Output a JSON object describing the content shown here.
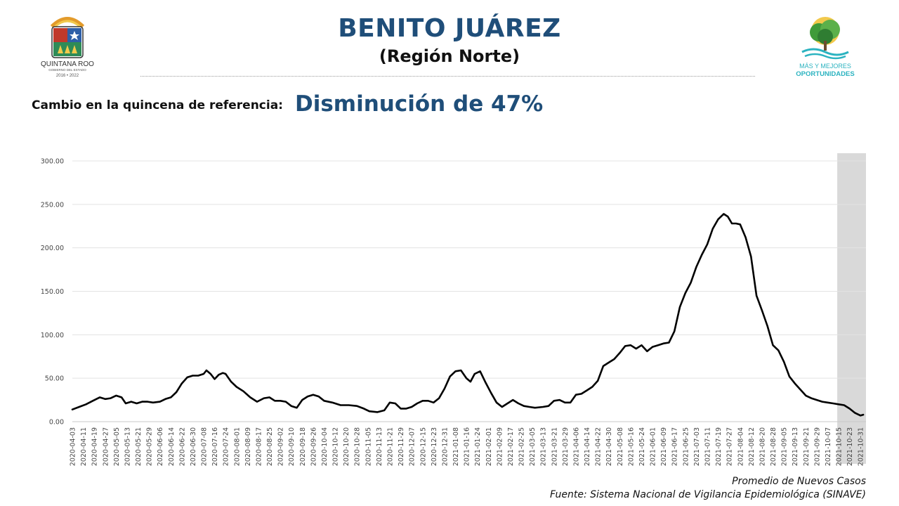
{
  "header": {
    "title": "BENITO JUÁREZ",
    "subtitle": "(Región Norte)",
    "change_label": "Cambio en la quincena de referencia:",
    "change_value": "Disminución de 47%"
  },
  "logos": {
    "left": {
      "line1": "QUINTANA ROO",
      "line2": "GOBIERNO DEL ESTADO",
      "line3": "2016 • 2022"
    },
    "right": {
      "line1": "MÁS Y MEJORES",
      "line2": "OPORTUNIDADES"
    }
  },
  "footer": {
    "series_note": "Promedio de Nuevos Casos",
    "source": "Fuente: Sistema Nacional de Vigilancia Epidemiológica (SINAVE)"
  },
  "colors": {
    "title": "#1f4e79",
    "line": "#000000",
    "shade": "#d9d9d9",
    "grid": "#e3e3e3"
  },
  "chart_data": {
    "type": "line",
    "ylim": [
      0,
      300
    ],
    "yticks": [
      "0.00",
      "50.00",
      "100.00",
      "150.00",
      "200.00",
      "250.00",
      "300.00"
    ],
    "xticks": [
      "2020-04-03",
      "2020-04-11",
      "2020-04-19",
      "2020-04-27",
      "2020-05-05",
      "2020-05-13",
      "2020-05-21",
      "2020-05-29",
      "2020-06-06",
      "2020-06-14",
      "2020-06-22",
      "2020-06-30",
      "2020-07-08",
      "2020-07-16",
      "2020-07-24",
      "2020-08-01",
      "2020-08-09",
      "2020-08-17",
      "2020-08-25",
      "2020-09-02",
      "2020-09-10",
      "2020-09-18",
      "2020-09-26",
      "2020-10-04",
      "2020-10-12",
      "2020-10-20",
      "2020-10-28",
      "2020-11-05",
      "2020-11-13",
      "2020-11-21",
      "2020-11-29",
      "2020-12-07",
      "2020-12-15",
      "2020-12-23",
      "2020-12-31",
      "2021-01-08",
      "2021-01-16",
      "2021-01-24",
      "2021-02-01",
      "2021-02-09",
      "2021-02-17",
      "2021-02-25",
      "2021-03-05",
      "2021-03-13",
      "2021-03-21",
      "2021-03-29",
      "2021-04-06",
      "2021-04-14",
      "2021-04-22",
      "2021-04-30",
      "2021-05-08",
      "2021-05-16",
      "2021-05-24",
      "2021-06-01",
      "2021-06-09",
      "2021-06-17",
      "2021-06-25",
      "2021-07-03",
      "2021-07-11",
      "2021-07-19",
      "2021-07-27",
      "2021-08-04",
      "2021-08-12",
      "2021-08-20",
      "2021-08-28",
      "2021-09-05",
      "2021-09-13",
      "2021-09-21",
      "2021-09-29",
      "2021-10-07",
      "2021-10-15",
      "2021-10-23",
      "2021-10-31"
    ],
    "shaded_from": "2021-10-14",
    "shaded_to": "2021-11-04",
    "series": [
      {
        "points": [
          [
            "2020-04-03",
            14
          ],
          [
            "2020-04-08",
            17
          ],
          [
            "2020-04-13",
            20
          ],
          [
            "2020-04-18",
            24
          ],
          [
            "2020-04-23",
            28
          ],
          [
            "2020-04-27",
            26
          ],
          [
            "2020-05-01",
            27
          ],
          [
            "2020-05-05",
            30
          ],
          [
            "2020-05-09",
            28
          ],
          [
            "2020-05-12",
            21
          ],
          [
            "2020-05-16",
            23
          ],
          [
            "2020-05-20",
            21
          ],
          [
            "2020-05-24",
            23
          ],
          [
            "2020-05-28",
            23
          ],
          [
            "2020-06-01",
            22
          ],
          [
            "2020-06-06",
            23
          ],
          [
            "2020-06-10",
            26
          ],
          [
            "2020-06-14",
            28
          ],
          [
            "2020-06-18",
            34
          ],
          [
            "2020-06-22",
            44
          ],
          [
            "2020-06-26",
            51
          ],
          [
            "2020-06-30",
            53
          ],
          [
            "2020-07-04",
            53
          ],
          [
            "2020-07-08",
            55
          ],
          [
            "2020-07-10",
            59
          ],
          [
            "2020-07-13",
            55
          ],
          [
            "2020-07-16",
            49
          ],
          [
            "2020-07-19",
            54
          ],
          [
            "2020-07-22",
            56
          ],
          [
            "2020-07-24",
            55
          ],
          [
            "2020-07-28",
            46
          ],
          [
            "2020-08-01",
            40
          ],
          [
            "2020-08-06",
            35
          ],
          [
            "2020-08-11",
            28
          ],
          [
            "2020-08-16",
            23
          ],
          [
            "2020-08-21",
            27
          ],
          [
            "2020-08-25",
            28
          ],
          [
            "2020-08-29",
            24
          ],
          [
            "2020-09-02",
            24
          ],
          [
            "2020-09-06",
            23
          ],
          [
            "2020-09-10",
            18
          ],
          [
            "2020-09-14",
            16
          ],
          [
            "2020-09-18",
            25
          ],
          [
            "2020-09-22",
            29
          ],
          [
            "2020-09-26",
            31
          ],
          [
            "2020-09-30",
            29
          ],
          [
            "2020-10-04",
            24
          ],
          [
            "2020-10-10",
            22
          ],
          [
            "2020-10-16",
            19
          ],
          [
            "2020-10-22",
            19
          ],
          [
            "2020-10-28",
            18
          ],
          [
            "2020-11-02",
            15
          ],
          [
            "2020-11-06",
            12
          ],
          [
            "2020-11-12",
            11
          ],
          [
            "2020-11-17",
            13
          ],
          [
            "2020-11-21",
            22
          ],
          [
            "2020-11-25",
            21
          ],
          [
            "2020-11-29",
            15
          ],
          [
            "2020-12-03",
            15
          ],
          [
            "2020-12-07",
            17
          ],
          [
            "2020-12-11",
            21
          ],
          [
            "2020-12-15",
            24
          ],
          [
            "2020-12-19",
            24
          ],
          [
            "2020-12-23",
            22
          ],
          [
            "2020-12-27",
            27
          ],
          [
            "2020-12-31",
            38
          ],
          [
            "2021-01-04",
            52
          ],
          [
            "2021-01-08",
            58
          ],
          [
            "2021-01-12",
            59
          ],
          [
            "2021-01-16",
            50
          ],
          [
            "2021-01-19",
            46
          ],
          [
            "2021-01-22",
            55
          ],
          [
            "2021-01-26",
            58
          ],
          [
            "2021-01-30",
            45
          ],
          [
            "2021-02-03",
            33
          ],
          [
            "2021-02-07",
            22
          ],
          [
            "2021-02-11",
            17
          ],
          [
            "2021-02-15",
            21
          ],
          [
            "2021-02-19",
            25
          ],
          [
            "2021-02-23",
            21
          ],
          [
            "2021-02-27",
            18
          ],
          [
            "2021-03-03",
            17
          ],
          [
            "2021-03-07",
            16
          ],
          [
            "2021-03-13",
            17
          ],
          [
            "2021-03-17",
            18
          ],
          [
            "2021-03-21",
            24
          ],
          [
            "2021-03-25",
            25
          ],
          [
            "2021-03-29",
            22
          ],
          [
            "2021-04-02",
            22
          ],
          [
            "2021-04-06",
            31
          ],
          [
            "2021-04-10",
            32
          ],
          [
            "2021-04-14",
            36
          ],
          [
            "2021-04-18",
            40
          ],
          [
            "2021-04-22",
            47
          ],
          [
            "2021-04-26",
            64
          ],
          [
            "2021-04-30",
            68
          ],
          [
            "2021-05-04",
            72
          ],
          [
            "2021-05-08",
            79
          ],
          [
            "2021-05-12",
            87
          ],
          [
            "2021-05-16",
            88
          ],
          [
            "2021-05-20",
            84
          ],
          [
            "2021-05-24",
            88
          ],
          [
            "2021-05-28",
            81
          ],
          [
            "2021-06-01",
            86
          ],
          [
            "2021-06-05",
            88
          ],
          [
            "2021-06-09",
            90
          ],
          [
            "2021-06-13",
            91
          ],
          [
            "2021-06-17",
            104
          ],
          [
            "2021-06-21",
            132
          ],
          [
            "2021-06-25",
            148
          ],
          [
            "2021-06-29",
            160
          ],
          [
            "2021-07-03",
            178
          ],
          [
            "2021-07-07",
            192
          ],
          [
            "2021-07-11",
            204
          ],
          [
            "2021-07-15",
            222
          ],
          [
            "2021-07-19",
            233
          ],
          [
            "2021-07-23",
            239
          ],
          [
            "2021-07-26",
            236
          ],
          [
            "2021-07-29",
            228
          ],
          [
            "2021-08-01",
            228
          ],
          [
            "2021-08-04",
            227
          ],
          [
            "2021-08-08",
            212
          ],
          [
            "2021-08-12",
            190
          ],
          [
            "2021-08-16",
            145
          ],
          [
            "2021-08-20",
            128
          ],
          [
            "2021-08-24",
            110
          ],
          [
            "2021-08-28",
            88
          ],
          [
            "2021-09-01",
            82
          ],
          [
            "2021-09-05",
            69
          ],
          [
            "2021-09-09",
            52
          ],
          [
            "2021-09-13",
            44
          ],
          [
            "2021-09-17",
            37
          ],
          [
            "2021-09-21",
            30
          ],
          [
            "2021-09-25",
            27
          ],
          [
            "2021-09-29",
            25
          ],
          [
            "2021-10-03",
            23
          ],
          [
            "2021-10-07",
            22
          ],
          [
            "2021-10-11",
            21
          ],
          [
            "2021-10-15",
            20
          ],
          [
            "2021-10-19",
            19
          ],
          [
            "2021-10-23",
            15
          ],
          [
            "2021-10-27",
            10
          ],
          [
            "2021-10-31",
            7
          ],
          [
            "2021-11-02",
            8
          ]
        ]
      }
    ]
  }
}
